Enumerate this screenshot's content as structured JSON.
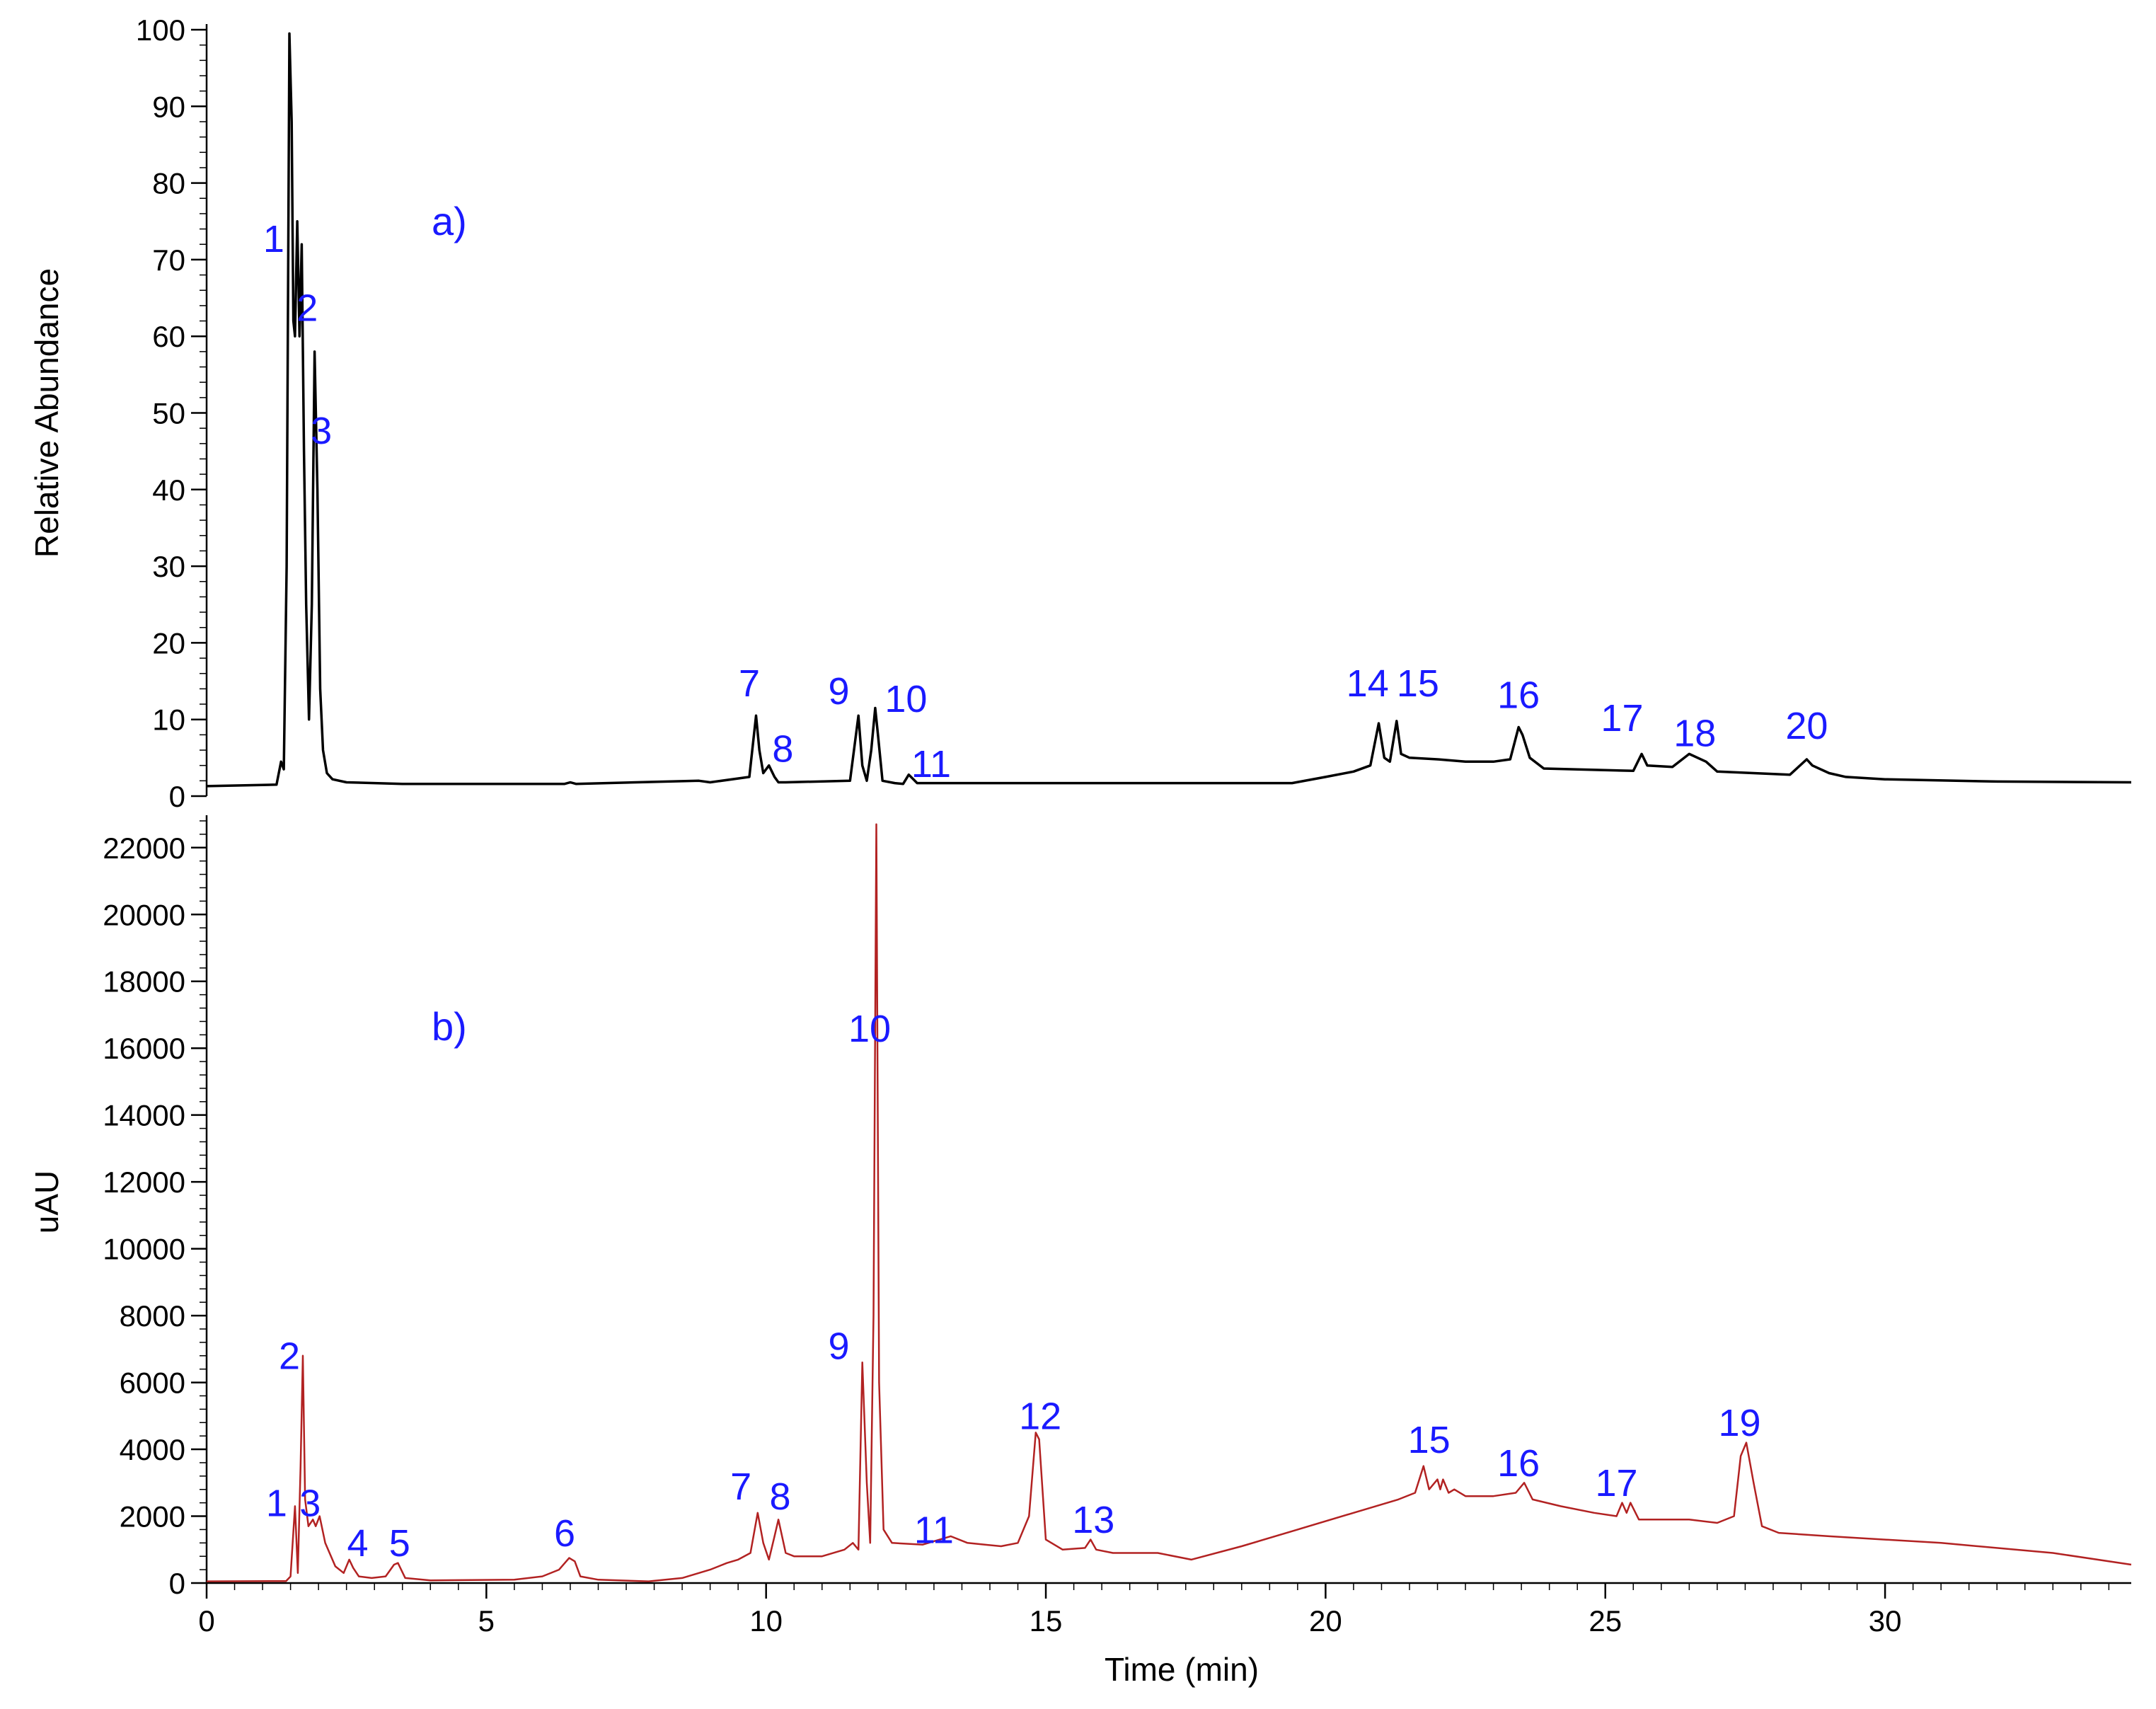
{
  "colors": {
    "panel_a_trace": "#000000",
    "panel_b_trace": "#b22222",
    "annotation": "#1a1aff",
    "axis": "#000000"
  },
  "x_axis": {
    "label": "Time (min)",
    "range": [
      0,
      34.4
    ],
    "ticks": [
      0,
      5,
      10,
      15,
      20,
      25,
      30
    ],
    "minor_step": 0.5
  },
  "chart_data": [
    {
      "type": "line",
      "panel_tag": "a)",
      "ylabel": "Relative Abundance",
      "xlim": [
        0,
        34.4
      ],
      "ylim": [
        0,
        100
      ],
      "yticks": [
        0,
        10,
        20,
        30,
        40,
        50,
        60,
        70,
        80,
        90,
        100
      ],
      "y_minor_step": 2,
      "series": [
        {
          "color": "#000000",
          "x": [
            0,
            1.25,
            1.33,
            1.38,
            1.43,
            1.48,
            1.52,
            1.55,
            1.58,
            1.62,
            1.66,
            1.7,
            1.74,
            1.78,
            1.83,
            1.88,
            1.93,
            1.98,
            2.03,
            2.08,
            2.15,
            2.25,
            2.5,
            3.5,
            6.4,
            6.5,
            6.6,
            8.8,
            9.0,
            9.7,
            9.82,
            9.88,
            9.95,
            10.05,
            10.15,
            10.22,
            10.35,
            11.5,
            11.65,
            11.72,
            11.8,
            11.88,
            11.95,
            12.0,
            12.08,
            12.3,
            12.45,
            12.55,
            12.7,
            19.4,
            20.0,
            20.5,
            20.8,
            20.95,
            21.05,
            21.15,
            21.27,
            21.35,
            21.5,
            22.0,
            22.5,
            23.0,
            23.3,
            23.45,
            23.52,
            23.65,
            23.9,
            25.5,
            25.65,
            25.75,
            26.2,
            26.5,
            26.8,
            27.0,
            28.3,
            28.6,
            28.7,
            29.0,
            29.3,
            30.0,
            32.0,
            34.4
          ],
          "y": [
            1.3,
            1.5,
            4.5,
            3.5,
            30,
            99.5,
            88,
            62,
            60,
            75,
            60,
            72,
            45,
            25,
            10,
            25,
            58,
            40,
            14,
            6,
            3,
            2.2,
            1.8,
            1.6,
            1.6,
            1.8,
            1.6,
            2.0,
            1.8,
            2.5,
            10.5,
            6,
            3,
            4,
            2.5,
            1.8,
            1.8,
            2.0,
            10.5,
            4,
            2,
            6,
            11.5,
            8,
            2,
            1.7,
            1.6,
            2.8,
            1.7,
            1.7,
            2.5,
            3.2,
            4,
            9.5,
            5,
            4.5,
            9.8,
            5.5,
            5.0,
            4.8,
            4.5,
            4.5,
            4.8,
            9,
            8,
            5,
            3.6,
            3.3,
            5.5,
            4.0,
            3.8,
            5.5,
            4.5,
            3.2,
            2.8,
            4.8,
            4.0,
            3.0,
            2.5,
            2.2,
            1.9,
            1.8
          ]
        }
      ],
      "annotations": [
        {
          "text": "1",
          "x": 1.2,
          "y": 71
        },
        {
          "text": "2",
          "x": 1.8,
          "y": 62
        },
        {
          "text": "3",
          "x": 2.05,
          "y": 46
        },
        {
          "text": "7",
          "x": 9.7,
          "y": 13
        },
        {
          "text": "8",
          "x": 10.3,
          "y": 4.5
        },
        {
          "text": "9",
          "x": 11.3,
          "y": 12
        },
        {
          "text": "10",
          "x": 12.5,
          "y": 11
        },
        {
          "text": "11",
          "x": 12.95,
          "y": 2.5
        },
        {
          "text": "14",
          "x": 20.75,
          "y": 13
        },
        {
          "text": "15",
          "x": 21.65,
          "y": 13
        },
        {
          "text": "16",
          "x": 23.45,
          "y": 11.5
        },
        {
          "text": "17",
          "x": 25.3,
          "y": 8.5
        },
        {
          "text": "18",
          "x": 26.6,
          "y": 6.5
        },
        {
          "text": "20",
          "x": 28.6,
          "y": 7.5
        }
      ]
    },
    {
      "type": "line",
      "panel_tag": "b)",
      "ylabel": "uAU",
      "xlim": [
        0,
        34.4
      ],
      "ylim": [
        0,
        22800
      ],
      "yticks": [
        0,
        2000,
        4000,
        6000,
        8000,
        10000,
        12000,
        14000,
        16000,
        18000,
        20000,
        22000
      ],
      "y_minor_step": 400,
      "series": [
        {
          "color": "#b22222",
          "x": [
            0,
            1.3,
            1.42,
            1.5,
            1.58,
            1.63,
            1.68,
            1.72,
            1.76,
            1.82,
            1.9,
            1.95,
            2.02,
            2.12,
            2.3,
            2.45,
            2.55,
            2.62,
            2.72,
            2.95,
            3.2,
            3.35,
            3.42,
            3.55,
            4.0,
            5.5,
            6.0,
            6.3,
            6.48,
            6.58,
            6.68,
            7.0,
            7.9,
            8.5,
            9.0,
            9.3,
            9.5,
            9.72,
            9.85,
            9.95,
            10.05,
            10.15,
            10.22,
            10.35,
            10.5,
            11.0,
            11.4,
            11.55,
            11.65,
            11.72,
            11.8,
            11.86,
            11.92,
            11.97,
            12.02,
            12.1,
            12.25,
            12.8,
            13.3,
            13.6,
            14.2,
            14.5,
            14.7,
            14.82,
            14.88,
            15.0,
            15.3,
            15.7,
            15.8,
            15.9,
            16.2,
            17.0,
            17.6,
            18.5,
            19.5,
            20.5,
            21.3,
            21.6,
            21.75,
            21.85,
            22.0,
            22.05,
            22.1,
            22.2,
            22.3,
            22.5,
            23.0,
            23.4,
            23.55,
            23.7,
            24.2,
            24.8,
            25.2,
            25.3,
            25.38,
            25.45,
            25.6,
            26.5,
            27.0,
            27.3,
            27.42,
            27.52,
            27.65,
            27.8,
            28.1,
            29.0,
            31.0,
            33.0,
            34.4
          ],
          "y": [
            50,
            60,
            60,
            200,
            2300,
            300,
            3500,
            6800,
            2500,
            1700,
            1900,
            1700,
            2000,
            1200,
            500,
            300,
            700,
            450,
            200,
            150,
            200,
            550,
            600,
            150,
            80,
            100,
            200,
            400,
            750,
            650,
            200,
            100,
            50,
            150,
            400,
            600,
            700,
            900,
            2100,
            1200,
            700,
            1400,
            1900,
            900,
            800,
            800,
            1000,
            1200,
            1000,
            6600,
            3000,
            1200,
            8000,
            22700,
            6000,
            1600,
            1200,
            1150,
            1400,
            1200,
            1100,
            1200,
            2000,
            4500,
            4300,
            1300,
            1000,
            1050,
            1300,
            1000,
            900,
            900,
            700,
            1100,
            1600,
            2100,
            2500,
            2700,
            3500,
            2800,
            3100,
            2800,
            3100,
            2700,
            2800,
            2600,
            2600,
            2700,
            3000,
            2500,
            2300,
            2100,
            2000,
            2400,
            2100,
            2400,
            1900,
            1900,
            1800,
            2000,
            3800,
            4200,
            3000,
            1700,
            1500,
            1400,
            1200,
            900,
            550
          ]
        }
      ],
      "annotations": [
        {
          "text": "1",
          "x": 1.25,
          "y": 2000
        },
        {
          "text": "3",
          "x": 1.85,
          "y": 2000
        },
        {
          "text": "2",
          "x": 1.48,
          "y": 6400
        },
        {
          "text": "4",
          "x": 2.7,
          "y": 800
        },
        {
          "text": "5",
          "x": 3.45,
          "y": 800
        },
        {
          "text": "6",
          "x": 6.4,
          "y": 1100
        },
        {
          "text": "7",
          "x": 9.55,
          "y": 2500
        },
        {
          "text": "8",
          "x": 10.25,
          "y": 2200
        },
        {
          "text": "9",
          "x": 11.3,
          "y": 6700
        },
        {
          "text": "10",
          "x": 11.85,
          "y": 16200
        },
        {
          "text": "11",
          "x": 13.0,
          "y": 1200
        },
        {
          "text": "12",
          "x": 14.9,
          "y": 4600
        },
        {
          "text": "13",
          "x": 15.85,
          "y": 1500
        },
        {
          "text": "15",
          "x": 21.85,
          "y": 3900
        },
        {
          "text": "16",
          "x": 23.45,
          "y": 3200
        },
        {
          "text": "17",
          "x": 25.2,
          "y": 2600
        },
        {
          "text": "19",
          "x": 27.4,
          "y": 4400
        }
      ]
    }
  ]
}
